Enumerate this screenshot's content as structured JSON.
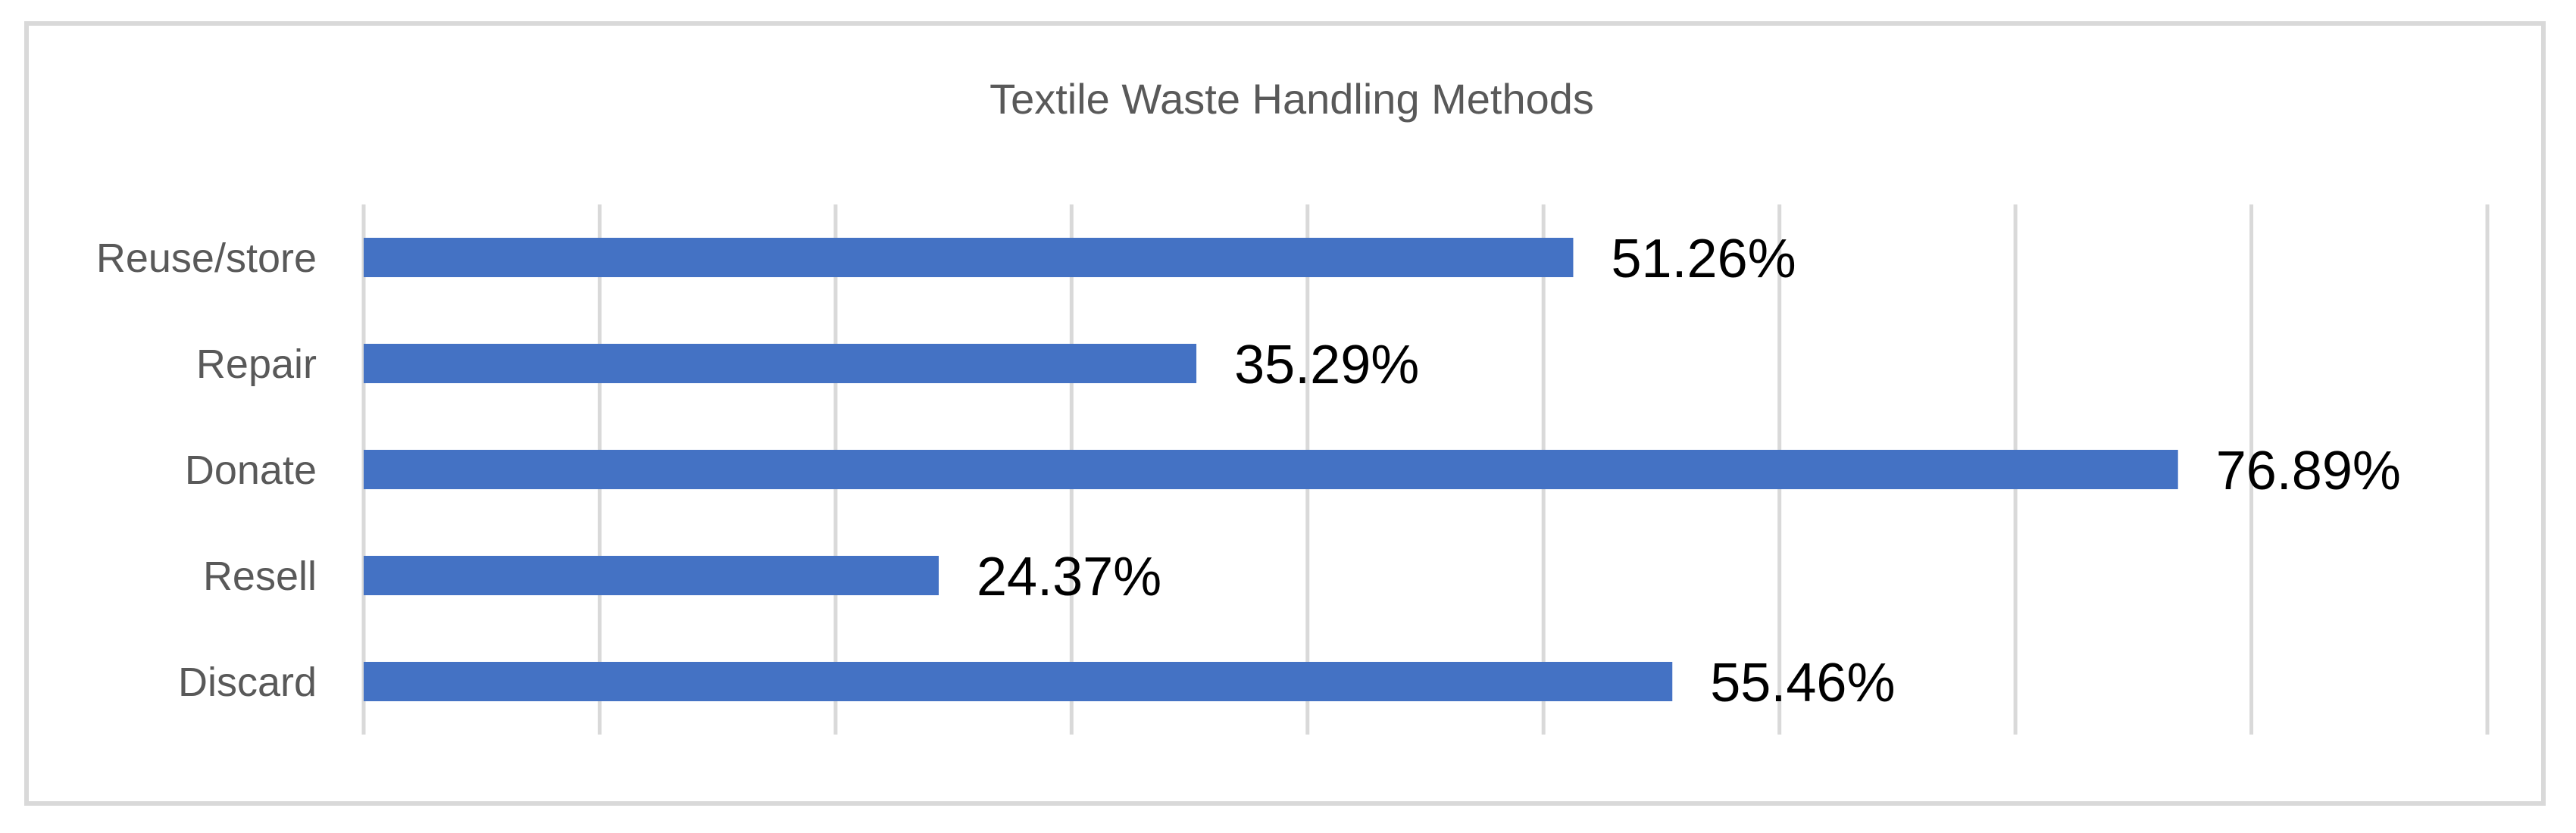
{
  "chart_data": {
    "type": "bar",
    "orientation": "horizontal",
    "title": "Textile Waste Handling Methods",
    "categories": [
      "Reuse/store",
      "Repair",
      "Donate",
      "Resell",
      "Discard"
    ],
    "values": [
      51.26,
      35.29,
      76.89,
      24.37,
      55.46
    ],
    "data_labels": [
      "51.26%",
      "35.29%",
      "76.89%",
      "24.37%",
      "55.46%"
    ],
    "xlim": [
      0,
      90
    ],
    "grid": true,
    "legend": "none",
    "colors": {
      "bar": "#4472C4",
      "grid": "#d9d9d9",
      "frame": "#d9d9d9"
    }
  }
}
